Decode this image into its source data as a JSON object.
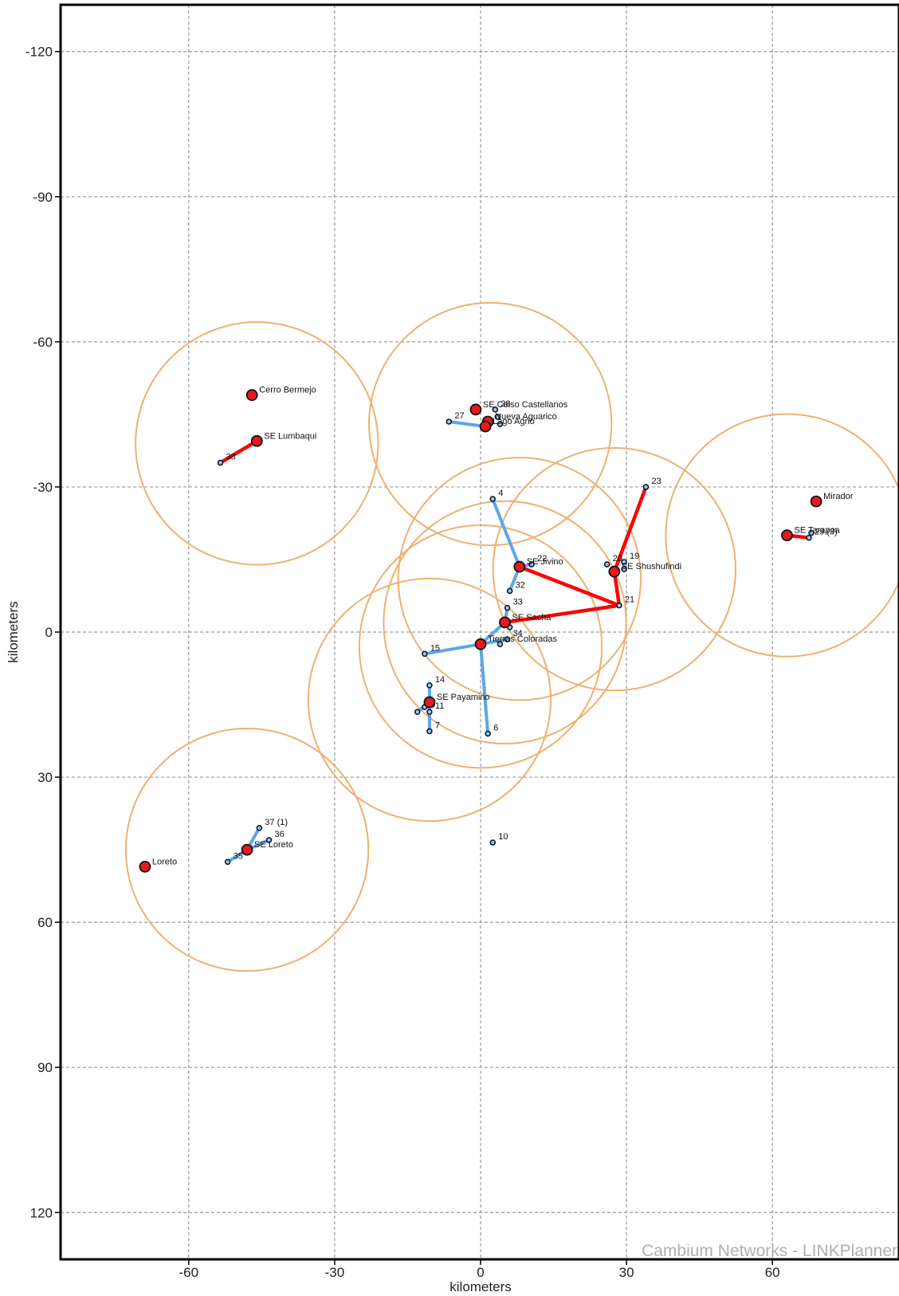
{
  "chart_data": {
    "type": "scatter",
    "title": "",
    "xlabel": "kilometers",
    "ylabel": "kilometers",
    "xlim": [
      -87,
      87
    ],
    "ylim": [
      130,
      -130
    ],
    "xticks": [
      -60,
      -30,
      0,
      30,
      60
    ],
    "yticks": [
      -120,
      -90,
      -60,
      -30,
      0,
      30,
      60,
      90,
      120
    ],
    "xtick_labels": [
      "-60",
      "-30",
      "0",
      "30",
      "60"
    ],
    "ytick_labels": [
      "-120",
      "-90",
      "-60",
      "-30",
      "0",
      "30",
      "60",
      "90",
      "120"
    ],
    "grid": true,
    "watermark": "Cambium Networks - LINKPlanner",
    "coverage_circles": [
      {
        "x": -46,
        "y": -39,
        "r": 25
      },
      {
        "x": 2,
        "y": -43,
        "r": 25
      },
      {
        "x": 8,
        "y": -11,
        "r": 25
      },
      {
        "x": 27.5,
        "y": -13,
        "r": 25
      },
      {
        "x": 5,
        "y": -2,
        "r": 25
      },
      {
        "x": 0,
        "y": 3,
        "r": 25
      },
      {
        "x": -10.5,
        "y": 14,
        "r": 25
      },
      {
        "x": 63,
        "y": -20,
        "r": 25
      },
      {
        "x": -48,
        "y": 45,
        "r": 25
      }
    ],
    "hubs": [
      {
        "name": "Cerro Bermejo",
        "x": -47,
        "y": -49,
        "label": "Cerro Bermejo"
      },
      {
        "name": "SE Lumbaqui",
        "x": -46,
        "y": -39.5,
        "label": "SE Lumbaqui"
      },
      {
        "name": "SE Celso Castellanos",
        "x": -1,
        "y": -46,
        "label": "SE Celso Castellanos"
      },
      {
        "name": "Nueva Aguarico",
        "x": 1.5,
        "y": -43.5,
        "label": "Nueva Aguarico"
      },
      {
        "name": "Lago Agrio",
        "x": 1,
        "y": -42.5,
        "label": "Lago Agrio"
      },
      {
        "name": "SE Jivino",
        "x": 8,
        "y": -13.5,
        "label": "SE Jivino"
      },
      {
        "name": "SE Shushufindi",
        "x": 27.5,
        "y": -12.5,
        "label": "SE Shushufindi"
      },
      {
        "name": "SE Sacha",
        "x": 5,
        "y": -2,
        "label": "SE Sacha"
      },
      {
        "name": "Tierras Coloradas",
        "x": 0,
        "y": 2.5,
        "label": "Tierras Coloradas"
      },
      {
        "name": "SE Payamino",
        "x": -10.5,
        "y": 14.5,
        "label": "SE Payamino"
      },
      {
        "name": "Mirador",
        "x": 69,
        "y": -27,
        "label": "Mirador"
      },
      {
        "name": "SE Tarapoa",
        "x": 63,
        "y": -20,
        "label": "SE Tarapoa"
      },
      {
        "name": "SE Loreto",
        "x": -48,
        "y": 45,
        "label": "SE Loreto"
      },
      {
        "name": "Loreto",
        "x": -69,
        "y": 48.5,
        "label": "Loreto"
      }
    ],
    "subscribers": [
      {
        "name": "23",
        "x": 34,
        "y": -30,
        "label": "23"
      },
      {
        "name": "4",
        "x": 2.5,
        "y": -27.5,
        "label": "4"
      },
      {
        "name": "22",
        "x": 10.5,
        "y": -14,
        "label": "22"
      },
      {
        "name": "32",
        "x": 6,
        "y": -8.5,
        "label": "32"
      },
      {
        "name": "20",
        "x": 26,
        "y": -14,
        "label": "20"
      },
      {
        "name": "19",
        "x": 29.5,
        "y": -14.5,
        "label": "19"
      },
      {
        "name": "18",
        "x": 29.5,
        "y": -13,
        "label": ""
      },
      {
        "name": "21",
        "x": 28.5,
        "y": -5.5,
        "label": "21"
      },
      {
        "name": "33",
        "x": 5.5,
        "y": -5,
        "label": "33"
      },
      {
        "name": "31",
        "x": 6,
        "y": -1,
        "label": ""
      },
      {
        "name": "34",
        "x": 5.5,
        "y": 1.5,
        "label": "34"
      },
      {
        "name": "30",
        "x": 4,
        "y": 2.5,
        "label": ""
      },
      {
        "name": "15",
        "x": -11.5,
        "y": 4.5,
        "label": "15"
      },
      {
        "name": "14",
        "x": -10.5,
        "y": 11,
        "label": "14"
      },
      {
        "name": "13",
        "x": -10,
        "y": 15,
        "label": ""
      },
      {
        "name": "12",
        "x": -11.5,
        "y": 15.5,
        "label": ""
      },
      {
        "name": "11",
        "x": -10.5,
        "y": 16.5,
        "label": "11"
      },
      {
        "name": "9",
        "x": -13,
        "y": 16.5,
        "label": ""
      },
      {
        "name": "7",
        "x": -10.5,
        "y": 20.5,
        "label": "7"
      },
      {
        "name": "6",
        "x": 1.5,
        "y": 21,
        "label": "6"
      },
      {
        "name": "10",
        "x": 2.5,
        "y": 43.5,
        "label": "10"
      },
      {
        "name": "27",
        "x": -6.5,
        "y": -43.5,
        "label": "27"
      },
      {
        "name": "28",
        "x": 3,
        "y": -46,
        "label": "28"
      },
      {
        "name": "26",
        "x": 3.5,
        "y": -44.5,
        "label": ""
      },
      {
        "name": "24",
        "x": 4,
        "y": -43,
        "label": ""
      },
      {
        "name": "29",
        "x": 67.5,
        "y": -19.5,
        "label": "29 (3)"
      },
      {
        "name": "25",
        "x": 68,
        "y": -20.5,
        "label": ""
      },
      {
        "name": "37",
        "x": -45.5,
        "y": 40.5,
        "label": "37 (1)"
      },
      {
        "name": "36",
        "x": -43.5,
        "y": 43,
        "label": "36"
      },
      {
        "name": "35",
        "x": -52,
        "y": 47.5,
        "label": "35"
      },
      {
        "name": "38",
        "x": -53.5,
        "y": -35,
        "label": "38"
      }
    ],
    "backhaul_links": [
      {
        "from": "SE Lumbaqui",
        "to": "38"
      },
      {
        "from": "SE Shushufindi",
        "to": "23"
      },
      {
        "from": "SE Shushufindi",
        "to": "21"
      },
      {
        "from": "SE Jivino",
        "to": "21"
      },
      {
        "from": "SE Sacha",
        "to": "21"
      },
      {
        "from": "SE Tarapoa",
        "to": "29"
      }
    ],
    "access_links": [
      {
        "from": "SE Jivino",
        "to": "4"
      },
      {
        "from": "SE Jivino",
        "to": "22"
      },
      {
        "from": "SE Jivino",
        "to": "32"
      },
      {
        "from": "SE Sacha",
        "to": "33"
      },
      {
        "from": "SE Sacha",
        "to": "31"
      },
      {
        "from": "Tierras Coloradas",
        "to": "15"
      },
      {
        "from": "Tierras Coloradas",
        "to": "6"
      },
      {
        "from": "Tierras Coloradas",
        "to": "34"
      },
      {
        "from": "Tierras Coloradas",
        "to": "SE Sacha"
      },
      {
        "from": "SE Payamino",
        "to": "14"
      },
      {
        "from": "SE Payamino",
        "to": "7"
      },
      {
        "from": "SE Payamino",
        "to": "9"
      },
      {
        "from": "Lago Agrio",
        "to": "27"
      },
      {
        "from": "SE Loreto",
        "to": "37"
      },
      {
        "from": "SE Loreto",
        "to": "36"
      },
      {
        "from": "SE Loreto",
        "to": "35"
      }
    ],
    "colors": {
      "hub": "#e41a1c",
      "subscriber": "#9ecae1",
      "backhaul": "#ff0000",
      "access": "#5da5e8",
      "circle": "#f0b070",
      "grid": "#9a9a9a"
    }
  }
}
